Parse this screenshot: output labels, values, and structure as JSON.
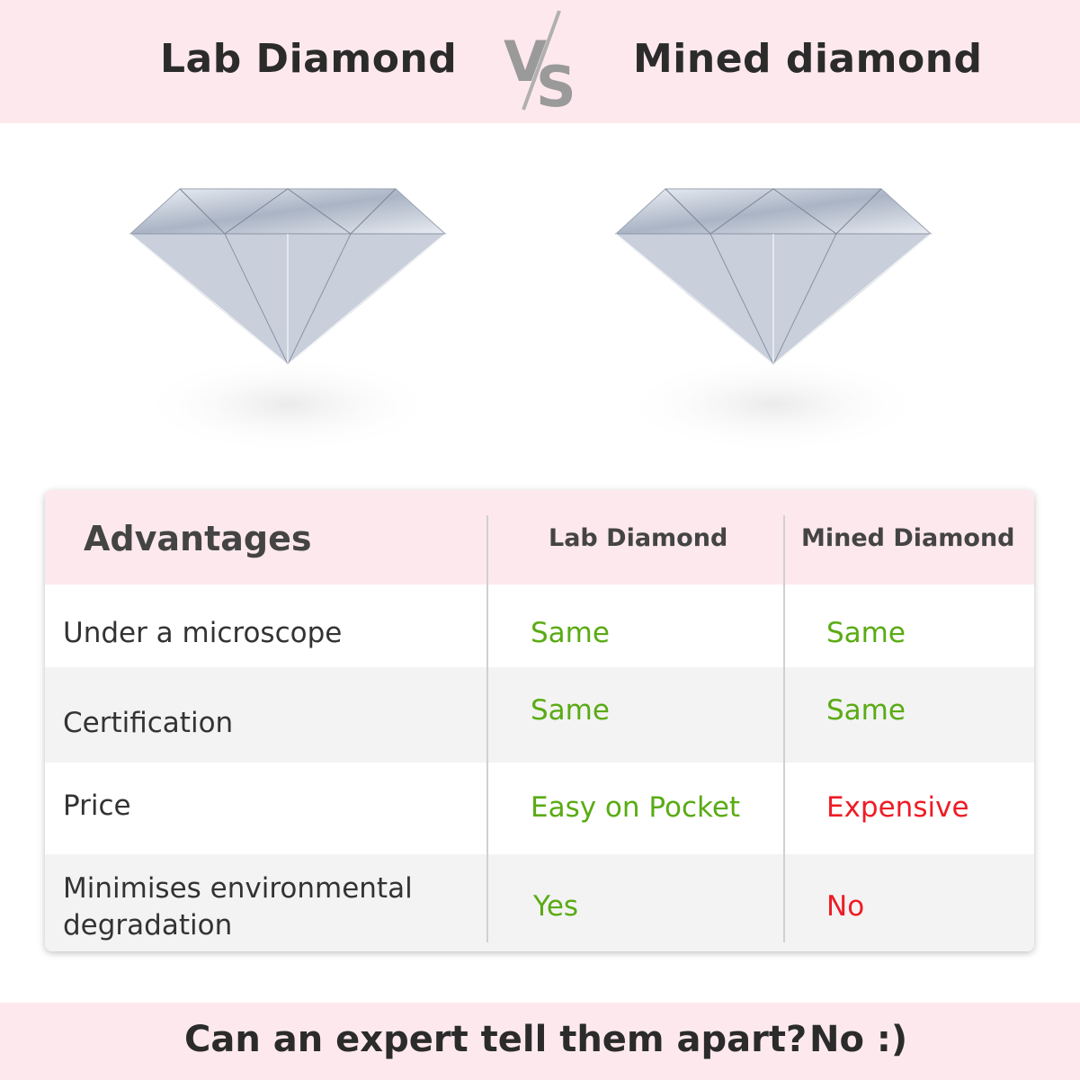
{
  "header": {
    "left_title": "Lab Diamond",
    "vs": "VS",
    "right_title": "Mined diamond"
  },
  "images": [
    {
      "name": "lab-diamond-image"
    },
    {
      "name": "mined-diamond-image"
    }
  ],
  "table": {
    "headers": [
      "Advantages",
      "Lab Diamond",
      "Mined Diamond"
    ],
    "rows": [
      {
        "label": "Under a microscope",
        "lab": "Same",
        "mined": "Same"
      },
      {
        "label": "Certification",
        "lab": "Same",
        "mined": "Same"
      },
      {
        "label": "Price",
        "lab": "Easy on Pocket",
        "mined": "Expensive"
      },
      {
        "label": "Minimises environmental degradation",
        "lab": "Yes",
        "mined": "No"
      }
    ]
  },
  "footer": {
    "question": "Can an expert tell them apart?",
    "answer": "No :)"
  },
  "colors": {
    "band": "#fde9ed",
    "positive": "#5aab14",
    "negative": "#ee1c25",
    "alt_row": "#f3f3f3"
  }
}
